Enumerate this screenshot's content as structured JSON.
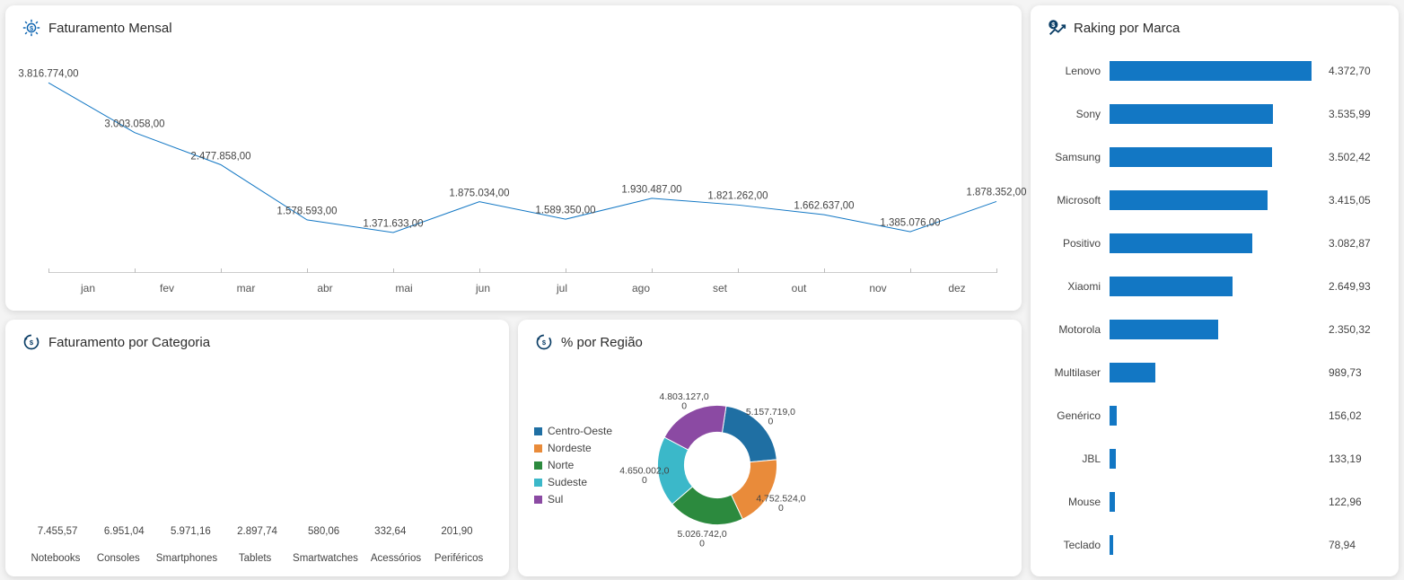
{
  "colors": {
    "primary": "#1277c4",
    "card_bg": "#ffffff",
    "page_bg": "#f4f4f4",
    "text": "#333333",
    "muted": "#555555",
    "axis": "#cccccc"
  },
  "monthly": {
    "title": "Faturamento Mensal",
    "type": "line",
    "line_color": "#1277c4",
    "line_width": 2,
    "label_fontsize": 11.5,
    "categories": [
      "jan",
      "fev",
      "mar",
      "abr",
      "mai",
      "jun",
      "jul",
      "ago",
      "set",
      "out",
      "nov",
      "dez"
    ],
    "values": [
      3816774.0,
      3003058.0,
      2477858.0,
      1578593.0,
      1371633.0,
      1875034.0,
      1589350.0,
      1930487.0,
      1821262.0,
      1662637.0,
      1385076.0,
      1878352.0
    ],
    "value_labels": [
      "3.816.774,00",
      "3.003.058,00",
      "2.477.858,00",
      "1.578.593,00",
      "1.371.633,00",
      "1.875.034,00",
      "1.589.350,00",
      "1.930.487,00",
      "1.821.262,00",
      "1.662.637,00",
      "1.385.076,00",
      "1.878.352,00"
    ],
    "ylim": [
      800000,
      4200000
    ]
  },
  "category": {
    "title": "Faturamento por Categoria",
    "type": "bar",
    "bar_color": "#1277c4",
    "categories": [
      "Notebooks",
      "Consoles",
      "Smartphones",
      "Tablets",
      "Smartwatches",
      "Acessórios",
      "Periféricos"
    ],
    "values": [
      7455.57,
      6951.04,
      5971.16,
      2897.74,
      580.06,
      332.64,
      201.9
    ],
    "value_labels": [
      "7.455,57",
      "6.951,04",
      "5.971,16",
      "2.897,74",
      "580,06",
      "332,64",
      "201,90"
    ],
    "ymax": 8000
  },
  "region": {
    "title": "% por Região",
    "type": "donut",
    "inner_ratio": 0.55,
    "items": [
      {
        "label": "Centro-Oeste",
        "value": 5157719.0,
        "value_label": "5.157.719,00",
        "color": "#1f6fa3"
      },
      {
        "label": "Nordeste",
        "value": 4752524.0,
        "value_label": "4.752.524,00",
        "color": "#e98b3a"
      },
      {
        "label": "Norte",
        "value": 5026742.0,
        "value_label": "5.026.742,00",
        "color": "#2c8a3e"
      },
      {
        "label": "Sudeste",
        "value": 4650002.0,
        "value_label": "4.650.002,00",
        "color": "#3bb8c9"
      },
      {
        "label": "Sul",
        "value": 4803127.0,
        "value_label": "4.803.127,00",
        "color": "#8b4aa3"
      }
    ]
  },
  "brand": {
    "title": "Raking por Marca",
    "type": "hbar",
    "bar_color": "#1277c4",
    "categories": [
      "Lenovo",
      "Sony",
      "Samsung",
      "Microsoft",
      "Positivo",
      "Xiaomi",
      "Motorola",
      "Multilaser",
      "Genérico",
      "JBL",
      "Mouse",
      "Teclado"
    ],
    "values": [
      4372.7,
      3535.99,
      3502.42,
      3415.05,
      3082.87,
      2649.93,
      2350.32,
      989.73,
      156.02,
      133.19,
      122.96,
      78.94
    ],
    "value_labels": [
      "4.372,70",
      "3.535,99",
      "3.502,42",
      "3.415,05",
      "3.082,87",
      "2.649,93",
      "2.350,32",
      "989,73",
      "156,02",
      "133,19",
      "122,96",
      "78,94"
    ],
    "xmax": 4500
  }
}
